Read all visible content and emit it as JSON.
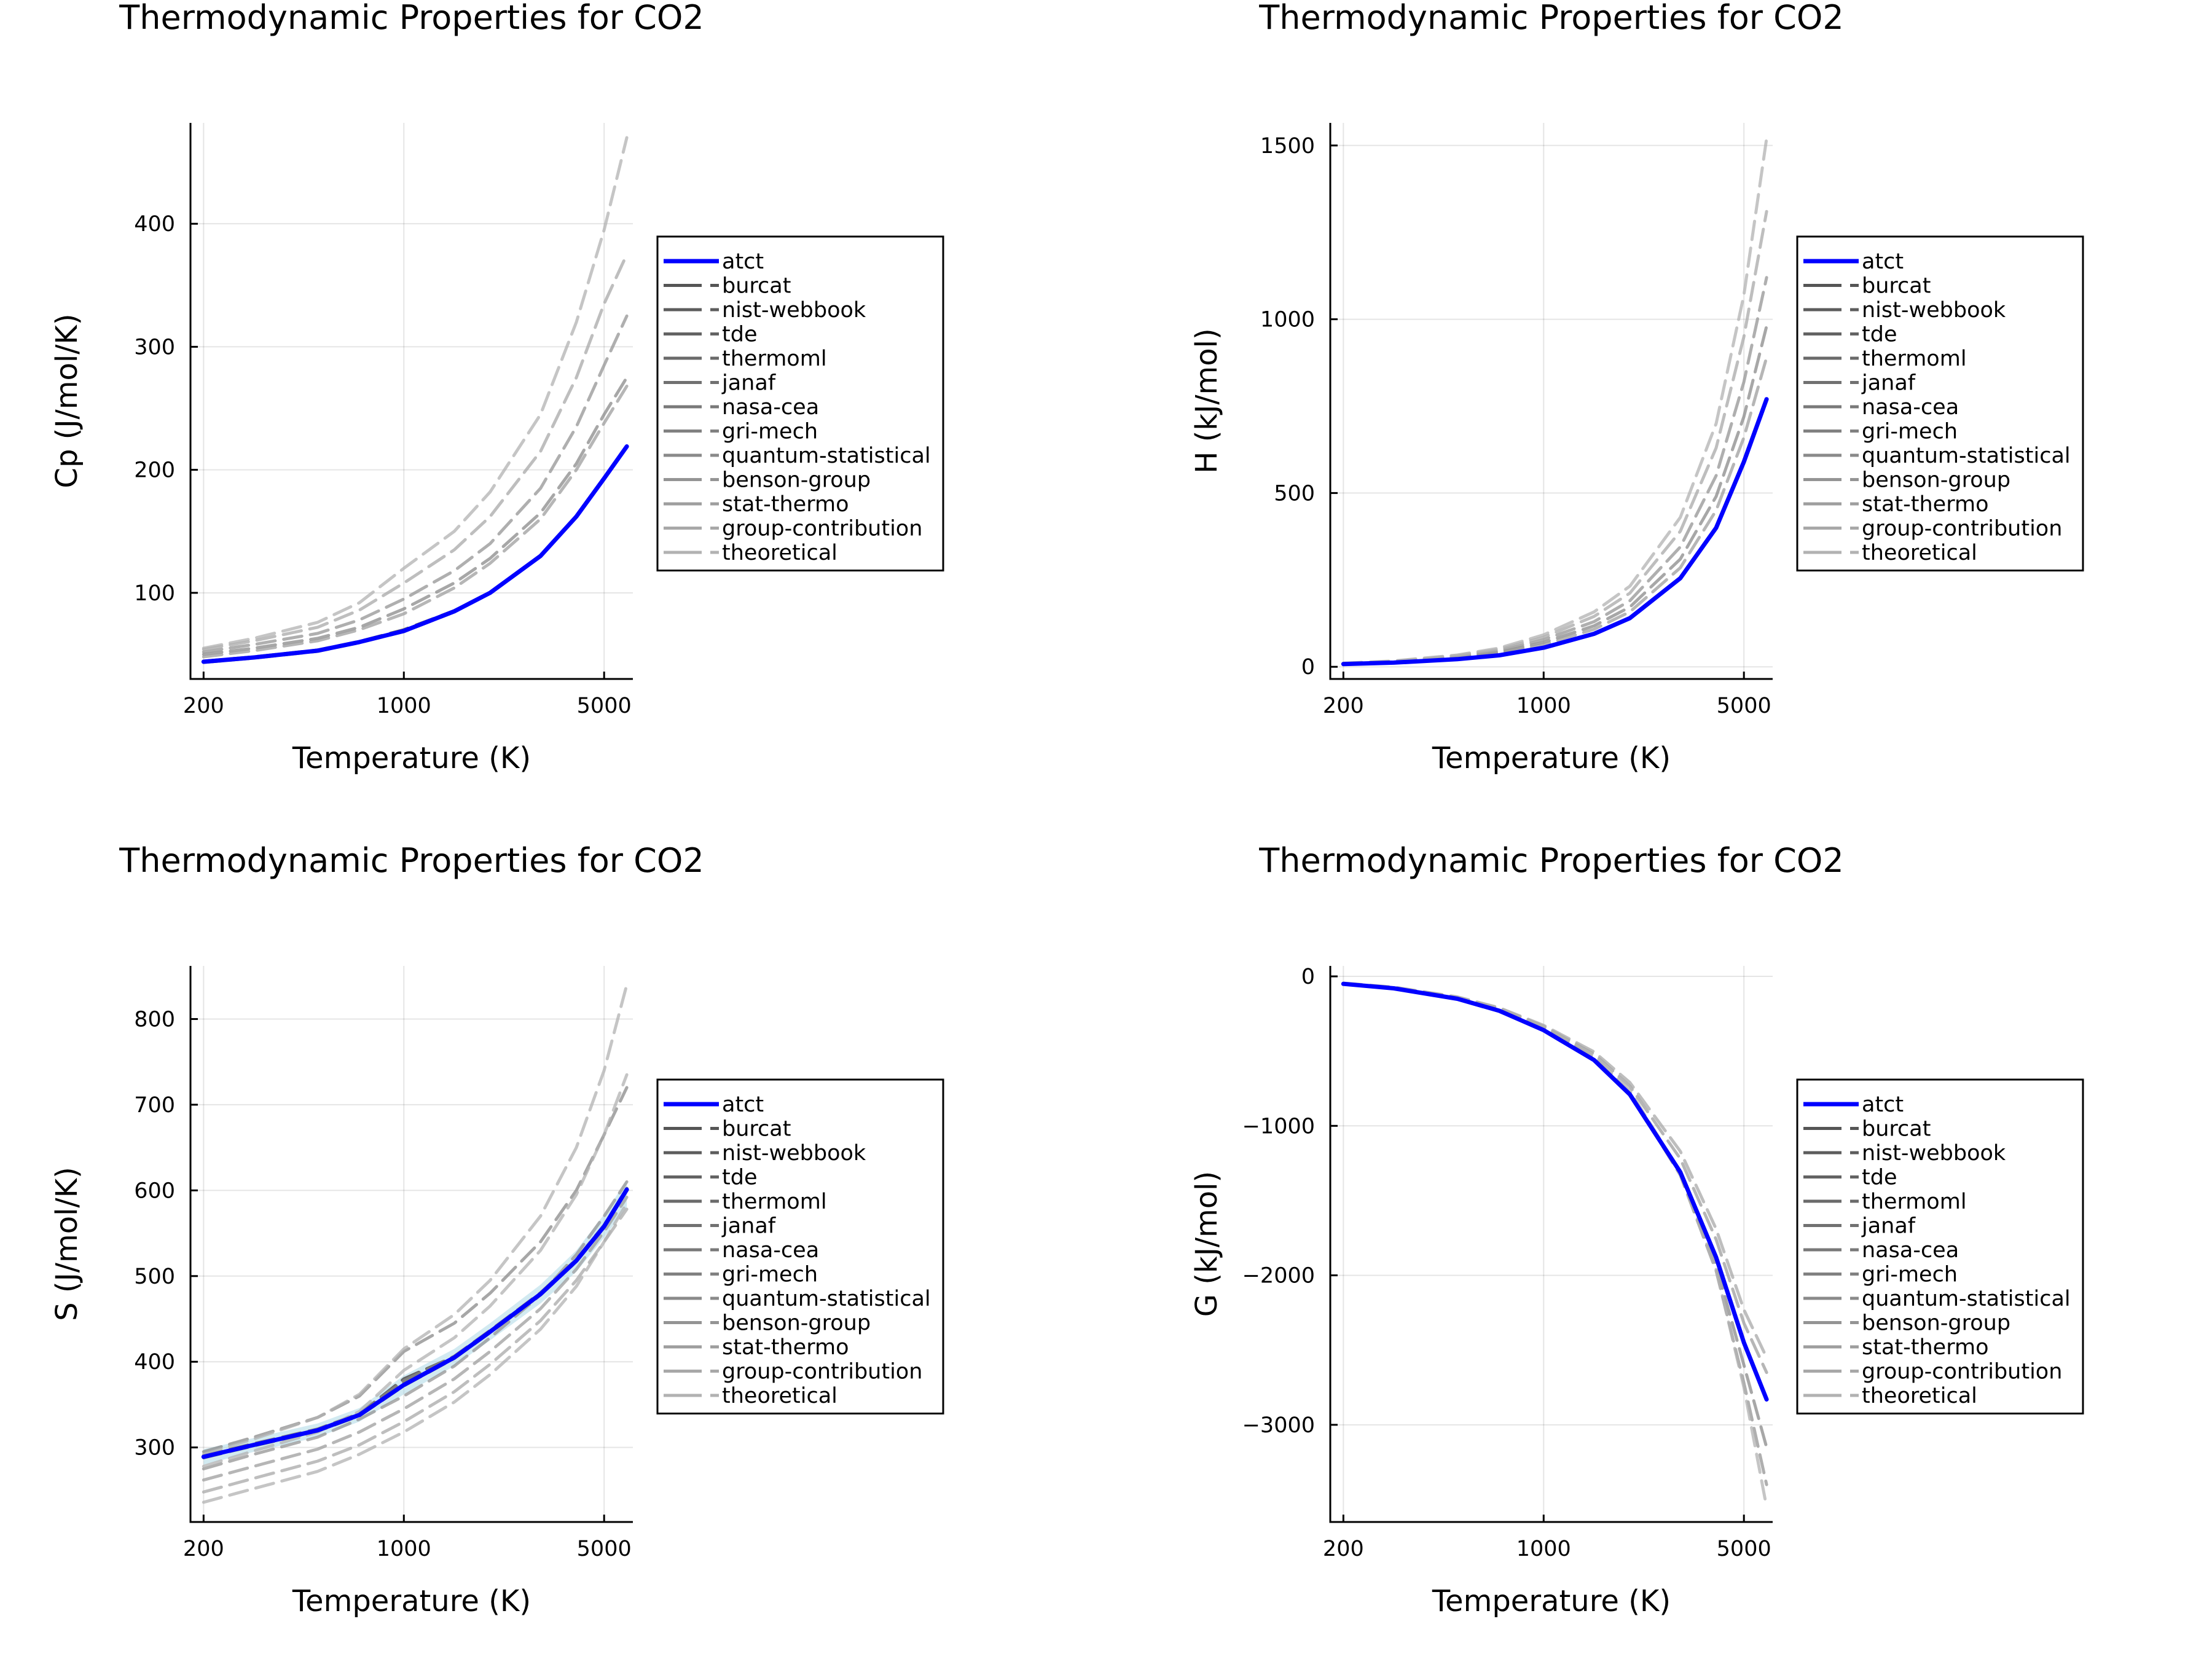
{
  "chart_data": [
    {
      "type": "line",
      "title": "Thermodynamic Properties for CO2",
      "xlabel": "Temperature (K)",
      "ylabel": "Cp (J/mol/K)",
      "xscale": "log",
      "xlim": [
        180,
        6300
      ],
      "xticks": [
        200,
        1000,
        5000
      ],
      "xtick_labels": [
        "200",
        "1000",
        "5000"
      ],
      "ylim": [
        30,
        482
      ],
      "yticks": [
        100,
        200,
        300,
        400
      ],
      "ytick_labels": [
        "100",
        "200",
        "300",
        "400"
      ],
      "grid": true,
      "legend": "outer-right",
      "x": [
        200,
        300,
        500,
        700,
        1000,
        1500,
        2000,
        3000,
        4000,
        5000,
        6000
      ],
      "series": [
        {
          "name": "atct",
          "values": [
            44,
            47.5,
            53,
            60,
            69,
            85,
            100,
            130,
            162,
            193,
            219
          ]
        },
        {
          "name": "burcat",
          "values": [
            44.5,
            48,
            53.5,
            60.5,
            70,
            85.5,
            100.5,
            130.5,
            162.5,
            193.5,
            219.5
          ]
        },
        {
          "name": "nist-webbook",
          "values": [
            43.5,
            47,
            52.5,
            59.5,
            68.5,
            84.5,
            99.5,
            129.5,
            161.5,
            192.5,
            218.5
          ]
        },
        {
          "name": "tde",
          "values": [
            44,
            47.4,
            53,
            60,
            69,
            85,
            100,
            130,
            162,
            193,
            219
          ]
        },
        {
          "name": "thermoml",
          "values": [
            44.2,
            47.6,
            53.2,
            60.2,
            69.2,
            85.2,
            100.2,
            130.2,
            162.2,
            193.2,
            219.2
          ]
        },
        {
          "name": "janaf",
          "values": [
            43.8,
            47.2,
            52.8,
            59.8,
            68.8,
            84.8,
            99.8,
            129.8,
            161.8,
            192.8,
            218.8
          ]
        },
        {
          "name": "nasa-cea",
          "values": [
            44,
            47.5,
            53,
            60,
            69,
            85,
            100,
            130,
            162,
            193,
            219
          ]
        },
        {
          "name": "gri-mech",
          "values": [
            44.3,
            47.7,
            53.3,
            60.3,
            69.3,
            85.3,
            100.3,
            130.3,
            162.3,
            193.3,
            219.3
          ]
        },
        {
          "name": "quantum-statistical",
          "values": [
            50,
            55,
            63,
            72,
            87,
            108,
            128,
            165,
            205,
            245,
            275
          ]
        },
        {
          "name": "benson-group",
          "values": [
            52,
            58,
            67,
            78,
            95,
            118,
            140,
            185,
            235,
            285,
            325
          ]
        },
        {
          "name": "stat-thermo",
          "values": [
            48,
            53,
            61,
            70,
            83,
            104,
            124,
            160,
            200,
            238,
            268
          ]
        },
        {
          "name": "group-contribution",
          "values": [
            54,
            61,
            72,
            86,
            108,
            135,
            162,
            215,
            275,
            335,
            375
          ]
        },
        {
          "name": "theoretical",
          "values": [
            55,
            63,
            76,
            92,
            120,
            150,
            182,
            245,
            320,
            395,
            470
          ]
        }
      ]
    },
    {
      "type": "line",
      "title": "Thermodynamic Properties for CO2",
      "xlabel": "Temperature (K)",
      "ylabel": "H (kJ/mol)",
      "xscale": "log",
      "xlim": [
        180,
        6300
      ],
      "xticks": [
        200,
        1000,
        5000
      ],
      "xtick_labels": [
        "200",
        "1000",
        "5000"
      ],
      "ylim": [
        -35,
        1565
      ],
      "yticks": [
        0,
        500,
        1000,
        1500
      ],
      "ytick_labels": [
        "0",
        "500",
        "1000",
        "1500"
      ],
      "grid": true,
      "legend": "outer-right",
      "x": [
        200,
        300,
        500,
        700,
        1000,
        1500,
        2000,
        3000,
        4000,
        5000,
        6000
      ],
      "series": [
        {
          "name": "atct",
          "values": [
            8,
            12,
            22,
            33,
            55,
            95,
            140,
            255,
            400,
            590,
            770
          ]
        },
        {
          "name": "burcat",
          "values": [
            8.2,
            12.2,
            22.2,
            33.2,
            55.5,
            95.5,
            140.5,
            255.5,
            400.5,
            591,
            771
          ]
        },
        {
          "name": "nist-webbook",
          "values": [
            7.8,
            11.8,
            21.8,
            32.8,
            54.5,
            94.5,
            139.5,
            254.5,
            399.5,
            589,
            769
          ]
        },
        {
          "name": "tde",
          "values": [
            8,
            12,
            22,
            33,
            55,
            95,
            140,
            255,
            400,
            590,
            770
          ]
        },
        {
          "name": "thermoml",
          "values": [
            8.1,
            12.1,
            22.1,
            33.1,
            55.2,
            95.2,
            140.2,
            255.2,
            400.2,
            590.5,
            770.5
          ]
        },
        {
          "name": "janaf",
          "values": [
            7.9,
            11.9,
            21.9,
            32.9,
            54.8,
            94.8,
            139.8,
            254.8,
            399.8,
            589.5,
            769.5
          ]
        },
        {
          "name": "nasa-cea",
          "values": [
            8,
            12,
            22,
            33,
            55,
            95,
            140,
            255,
            400,
            590,
            770
          ]
        },
        {
          "name": "gri-mech",
          "values": [
            8.3,
            12.3,
            22.3,
            33.3,
            55.3,
            95.3,
            140.3,
            255.3,
            400.3,
            590.3,
            770.3
          ]
        },
        {
          "name": "quantum-statistical",
          "values": [
            9,
            14,
            27,
            42,
            70,
            118,
            172,
            310,
            490,
            720,
            980
          ]
        },
        {
          "name": "benson-group",
          "values": [
            9.5,
            15,
            29,
            46,
            78,
            130,
            190,
            345,
            550,
            820,
            1120
          ]
        },
        {
          "name": "stat-thermo",
          "values": [
            8.5,
            13,
            25,
            39,
            64,
            108,
            158,
            285,
            450,
            660,
            890
          ]
        },
        {
          "name": "group-contribution",
          "values": [
            10,
            16,
            32,
            50,
            85,
            145,
            212,
            390,
            630,
            950,
            1310
          ]
        },
        {
          "name": "theoretical",
          "values": [
            10.5,
            17,
            34,
            54,
            92,
            158,
            232,
            430,
            700,
            1070,
            1520
          ]
        }
      ]
    },
    {
      "type": "line",
      "title": "Thermodynamic Properties for CO2",
      "xlabel": "Temperature (K)",
      "ylabel": "S (J/mol/K)",
      "xscale": "log",
      "xlim": [
        180,
        6300
      ],
      "xticks": [
        200,
        1000,
        5000
      ],
      "xtick_labels": [
        "200",
        "1000",
        "5000"
      ],
      "ylim": [
        213,
        862
      ],
      "yticks": [
        300,
        400,
        500,
        600,
        700,
        800
      ],
      "ytick_labels": [
        "300",
        "400",
        "500",
        "600",
        "700",
        "800"
      ],
      "grid": true,
      "legend": "outer-right",
      "uncertainty_band": {
        "series": "atct",
        "lower": [
          280,
          295,
          312,
          330,
          362,
          395,
          425,
          468,
          505,
          545,
          580
        ],
        "upper": [
          298,
          311,
          328,
          346,
          384,
          415,
          445,
          490,
          530,
          572,
          612
        ]
      },
      "x": [
        200,
        300,
        500,
        700,
        1000,
        1500,
        2000,
        3000,
        4000,
        5000,
        6000
      ],
      "series": [
        {
          "name": "atct",
          "values": [
            289,
            303,
            320,
            338,
            373,
            405,
            435,
            479,
            518,
            558,
            601
          ]
        },
        {
          "name": "burcat",
          "values": [
            290,
            304,
            321,
            339,
            380,
            406,
            436,
            480,
            519,
            559,
            602
          ]
        },
        {
          "name": "nist-webbook",
          "values": [
            288,
            302,
            319,
            337,
            372,
            404,
            434,
            478,
            517,
            557,
            600
          ]
        },
        {
          "name": "tde",
          "values": [
            289,
            303,
            320,
            338,
            374,
            405,
            435,
            479,
            518,
            558,
            601
          ]
        },
        {
          "name": "thermoml",
          "values": [
            289.5,
            303.5,
            320.5,
            338.5,
            376,
            405.5,
            435.5,
            479.5,
            518.5,
            558.5,
            601.5
          ]
        },
        {
          "name": "janaf",
          "values": [
            288.5,
            302.5,
            319.5,
            337.5,
            373,
            404.5,
            434.5,
            478.5,
            517.5,
            557.5,
            600.5
          ]
        },
        {
          "name": "nasa-cea",
          "values": [
            289,
            303,
            320,
            338,
            373,
            405,
            435,
            479,
            518,
            558,
            601
          ]
        },
        {
          "name": "gri-mech",
          "values": [
            290.5,
            304.5,
            321.5,
            339.5,
            378,
            406.5,
            436.5,
            480.5,
            519.5,
            559.5,
            602.5
          ]
        },
        {
          "name": "quantum-statistical",
          "values": [
            295,
            312,
            335,
            360,
            412,
            445,
            480,
            540,
            600,
            665,
            720
          ]
        },
        {
          "name": "benson-group",
          "values": [
            275,
            292,
            312,
            333,
            360,
            395,
            428,
            478,
            525,
            570,
            610
          ]
        },
        {
          "name": "stat-thermo",
          "values": [
            262,
            278,
            298,
            318,
            345,
            380,
            412,
            462,
            508,
            552,
            592
          ]
        },
        {
          "name": "group-contribution",
          "values": [
            248,
            264,
            284,
            303,
            330,
            365,
            397,
            448,
            495,
            540,
            578
          ]
        },
        {
          "name": "theoretical",
          "values": [
            236,
            252,
            272,
            292,
            318,
            353,
            385,
            438,
            488,
            540,
            585
          ]
        },
        {
          "name": "",
          "values": [
            292,
            310,
            335,
            362,
            415,
            455,
            495,
            570,
            650,
            740,
            840
          ]
        },
        {
          "name": "",
          "values": [
            278,
            296,
            318,
            342,
            390,
            428,
            465,
            530,
            595,
            665,
            735
          ]
        }
      ]
    },
    {
      "type": "line",
      "title": "Thermodynamic Properties for CO2",
      "xlabel": "Temperature (K)",
      "ylabel": "G (kJ/mol)",
      "xscale": "log",
      "xlim": [
        180,
        6300
      ],
      "xticks": [
        200,
        1000,
        5000
      ],
      "xtick_labels": [
        "200",
        "1000",
        "5000"
      ],
      "ylim": [
        -3650,
        70
      ],
      "yticks": [
        0,
        -1000,
        -2000,
        -3000
      ],
      "ytick_labels": [
        "0",
        "−1000",
        "−2000",
        "−3000"
      ],
      "grid": true,
      "legend": "outer-right",
      "x": [
        200,
        300,
        500,
        700,
        1000,
        1500,
        2000,
        3000,
        4000,
        5000,
        6000
      ],
      "series": [
        {
          "name": "atct",
          "values": [
            -50,
            -80,
            -150,
            -230,
            -360,
            -560,
            -790,
            -1310,
            -1880,
            -2450,
            -2830
          ]
        },
        {
          "name": "burcat",
          "values": [
            -50.5,
            -80.5,
            -150.5,
            -230.5,
            -361,
            -561,
            -791,
            -1311,
            -1881,
            -2451,
            -2831
          ]
        },
        {
          "name": "nist-webbook",
          "values": [
            -49.5,
            -79.5,
            -149.5,
            -229.5,
            -359,
            -559,
            -789,
            -1309,
            -1879,
            -2449,
            -2829
          ]
        },
        {
          "name": "tde",
          "values": [
            -50,
            -80,
            -150,
            -230,
            -360,
            -560,
            -790,
            -1310,
            -1880,
            -2450,
            -2830
          ]
        },
        {
          "name": "thermoml",
          "values": [
            -50.2,
            -80.2,
            -150.2,
            -230.2,
            -360.5,
            -560.5,
            -790.5,
            -1310.5,
            -1880.5,
            -2450.5,
            -2830.5
          ]
        },
        {
          "name": "janaf",
          "values": [
            -49.8,
            -79.8,
            -149.8,
            -229.8,
            -359.5,
            -559.5,
            -789.5,
            -1309.5,
            -1879.5,
            -2449.5,
            -2829.5
          ]
        },
        {
          "name": "nasa-cea",
          "values": [
            -50,
            -80,
            -150,
            -230,
            -360,
            -560,
            -790,
            -1310,
            -1880,
            -2450,
            -2830
          ]
        },
        {
          "name": "gri-mech",
          "values": [
            -50.3,
            -80.3,
            -150.3,
            -230.3,
            -360.3,
            -560.3,
            -790.3,
            -1310.3,
            -1880.3,
            -2450.3,
            -2830.3
          ]
        },
        {
          "name": "quantum-statistical",
          "values": [
            -48,
            -78,
            -148,
            -226,
            -352,
            -552,
            -785,
            -1320,
            -1930,
            -2600,
            -3150
          ]
        },
        {
          "name": "benson-group",
          "values": [
            -47,
            -76,
            -145,
            -222,
            -346,
            -545,
            -780,
            -1330,
            -1970,
            -2720,
            -3400
          ]
        },
        {
          "name": "stat-thermo",
          "values": [
            -46,
            -74,
            -140,
            -214,
            -335,
            -520,
            -735,
            -1220,
            -1760,
            -2320,
            -2650
          ]
        },
        {
          "name": "group-contribution",
          "values": [
            -45,
            -72,
            -137,
            -210,
            -328,
            -505,
            -710,
            -1170,
            -1690,
            -2230,
            -2550
          ]
        },
        {
          "name": "theoretical",
          "values": [
            -46,
            -75,
            -142,
            -218,
            -340,
            -535,
            -765,
            -1310,
            -1960,
            -2750,
            -3550
          ]
        }
      ]
    }
  ],
  "legend_entries": [
    "atct",
    "burcat",
    "nist-webbook",
    "tde",
    "thermoml",
    "janaf",
    "nasa-cea",
    "gri-mech",
    "quantum-statistical",
    "benson-group",
    "stat-thermo",
    "group-contribution",
    "theoretical"
  ],
  "colors": {
    "atct": "#0000ff",
    "band": "#add8e6",
    "series_gray": [
      "#555555",
      "#5c5c5c",
      "#636363",
      "#6a6a6a",
      "#717171",
      "#797979",
      "#818181",
      "#8a8a8a",
      "#949494",
      "#9e9e9e",
      "#a8a8a8",
      "#b2b2b2"
    ]
  }
}
